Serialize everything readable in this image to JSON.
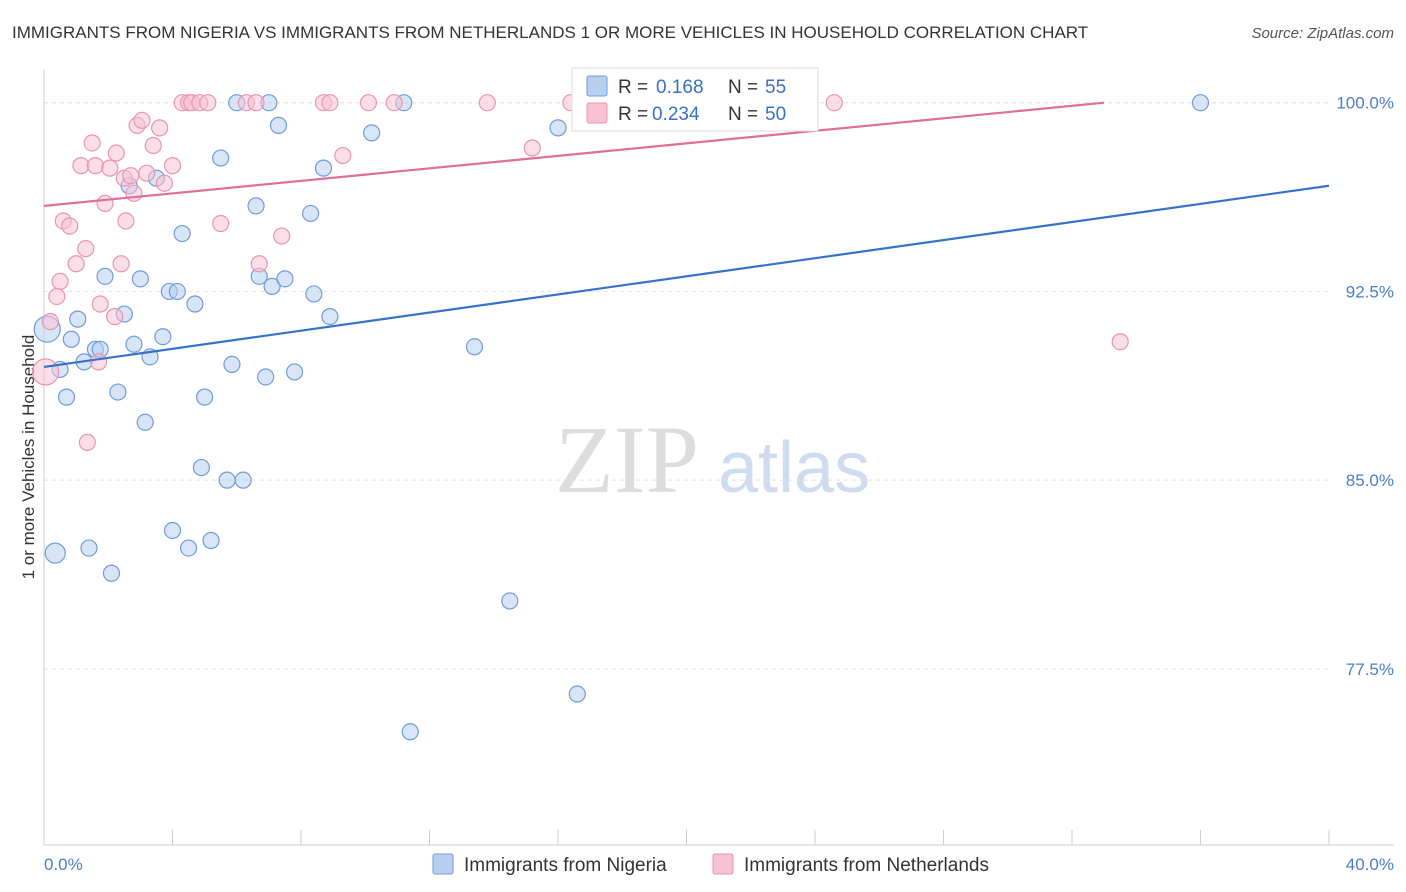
{
  "chart_data": {
    "type": "scatter",
    "title": "IMMIGRANTS FROM NIGERIA VS IMMIGRANTS FROM NETHERLANDS 1 OR MORE VEHICLES IN HOUSEHOLD CORRELATION CHART",
    "source": "Source: ZipAtlas.com",
    "ylabel": "1 or more Vehicles in Household",
    "xlim": [
      0,
      40
    ],
    "ylim": [
      70.5,
      101.3
    ],
    "x_tick_labels": [
      "0.0%",
      "40.0%"
    ],
    "y_ticks": [
      77.5,
      85.0,
      92.5,
      100.0
    ],
    "y_tick_labels": [
      "77.5%",
      "85.0%",
      "92.5%",
      "100.0%"
    ],
    "watermark": {
      "zip": "ZIP",
      "atlas": "atlas"
    },
    "legend": [
      {
        "r_label": "R =",
        "r_value": "0.168",
        "n_label": "N =",
        "n_value": "55"
      },
      {
        "r_label": "R =",
        "r_value": "0.234",
        "n_label": "N =",
        "n_value": "50"
      }
    ],
    "colors": {
      "nigeria_fill": "#b8d0f0",
      "nigeria_stroke": "#6e9cd8",
      "nigeria_line": "#3672c9",
      "netherlands_fill": "#f7c3d3",
      "netherlands_stroke": "#e895b0",
      "netherlands_line": "#e06e97"
    },
    "series": [
      {
        "name": "Immigrants from Nigeria",
        "trend": {
          "x": [
            0,
            40
          ],
          "y": [
            89.5,
            96.7
          ]
        },
        "points": [
          [
            0.1,
            91.0
          ],
          [
            0.35,
            82.1
          ],
          [
            0.5,
            89.4
          ],
          [
            0.7,
            88.3
          ],
          [
            0.85,
            90.6
          ],
          [
            1.05,
            91.4
          ],
          [
            1.25,
            89.7
          ],
          [
            1.4,
            82.3
          ],
          [
            1.6,
            90.2
          ],
          [
            1.75,
            90.2
          ],
          [
            1.9,
            93.1
          ],
          [
            2.1,
            81.3
          ],
          [
            2.3,
            88.5
          ],
          [
            2.5,
            91.6
          ],
          [
            2.65,
            96.7
          ],
          [
            2.8,
            90.4
          ],
          [
            3.0,
            93.0
          ],
          [
            3.15,
            87.3
          ],
          [
            3.3,
            89.9
          ],
          [
            3.5,
            97.0
          ],
          [
            3.7,
            90.7
          ],
          [
            3.9,
            92.5
          ],
          [
            4.0,
            83.0
          ],
          [
            4.15,
            92.5
          ],
          [
            4.3,
            94.8
          ],
          [
            4.5,
            82.3
          ],
          [
            4.7,
            92.0
          ],
          [
            4.9,
            85.5
          ],
          [
            5.0,
            88.3
          ],
          [
            5.2,
            82.6
          ],
          [
            5.5,
            97.8
          ],
          [
            5.7,
            85.0
          ],
          [
            5.85,
            89.6
          ],
          [
            6.0,
            100.0
          ],
          [
            6.2,
            85.0
          ],
          [
            6.6,
            95.9
          ],
          [
            6.7,
            93.1
          ],
          [
            6.9,
            89.1
          ],
          [
            7.1,
            92.7
          ],
          [
            7.0,
            100.0
          ],
          [
            7.3,
            99.1
          ],
          [
            7.5,
            93.0
          ],
          [
            7.8,
            89.3
          ],
          [
            8.3,
            95.6
          ],
          [
            8.4,
            92.4
          ],
          [
            8.7,
            97.4
          ],
          [
            8.9,
            91.5
          ],
          [
            10.2,
            98.8
          ],
          [
            11.2,
            100.0
          ],
          [
            11.4,
            75.0
          ],
          [
            13.4,
            90.3
          ],
          [
            14.5,
            80.2
          ],
          [
            16.0,
            99.0
          ],
          [
            16.6,
            76.5
          ],
          [
            36.0,
            100.0
          ]
        ]
      },
      {
        "name": "Immigrants from Netherlands",
        "trend": {
          "x": [
            0,
            33
          ],
          "y": [
            95.9,
            100.0
          ]
        },
        "points": [
          [
            0.05,
            89.3
          ],
          [
            0.2,
            91.3
          ],
          [
            0.4,
            92.3
          ],
          [
            0.5,
            92.9
          ],
          [
            0.6,
            95.3
          ],
          [
            0.8,
            95.1
          ],
          [
            1.0,
            93.6
          ],
          [
            1.15,
            97.5
          ],
          [
            1.3,
            94.2
          ],
          [
            1.35,
            86.5
          ],
          [
            1.5,
            98.4
          ],
          [
            1.6,
            97.5
          ],
          [
            1.7,
            89.7
          ],
          [
            1.75,
            92.0
          ],
          [
            1.9,
            96.0
          ],
          [
            2.05,
            97.4
          ],
          [
            2.2,
            91.5
          ],
          [
            2.25,
            98.0
          ],
          [
            2.4,
            93.6
          ],
          [
            2.5,
            97.0
          ],
          [
            2.55,
            95.3
          ],
          [
            2.7,
            97.1
          ],
          [
            2.8,
            96.4
          ],
          [
            2.9,
            99.1
          ],
          [
            3.05,
            99.3
          ],
          [
            3.2,
            97.2
          ],
          [
            3.4,
            98.3
          ],
          [
            3.6,
            99.0
          ],
          [
            3.75,
            96.8
          ],
          [
            4.0,
            97.5
          ],
          [
            4.3,
            100.0
          ],
          [
            4.5,
            100.0
          ],
          [
            4.6,
            100.0
          ],
          [
            4.85,
            100.0
          ],
          [
            5.1,
            100.0
          ],
          [
            5.5,
            95.2
          ],
          [
            6.3,
            100.0
          ],
          [
            6.6,
            100.0
          ],
          [
            6.7,
            93.6
          ],
          [
            7.4,
            94.7
          ],
          [
            8.7,
            100.0
          ],
          [
            8.9,
            100.0
          ],
          [
            9.3,
            97.9
          ],
          [
            10.1,
            100.0
          ],
          [
            10.9,
            100.0
          ],
          [
            13.8,
            100.0
          ],
          [
            15.2,
            98.2
          ],
          [
            16.4,
            100.0
          ],
          [
            24.6,
            100.0
          ],
          [
            33.5,
            90.5
          ]
        ]
      }
    ]
  }
}
